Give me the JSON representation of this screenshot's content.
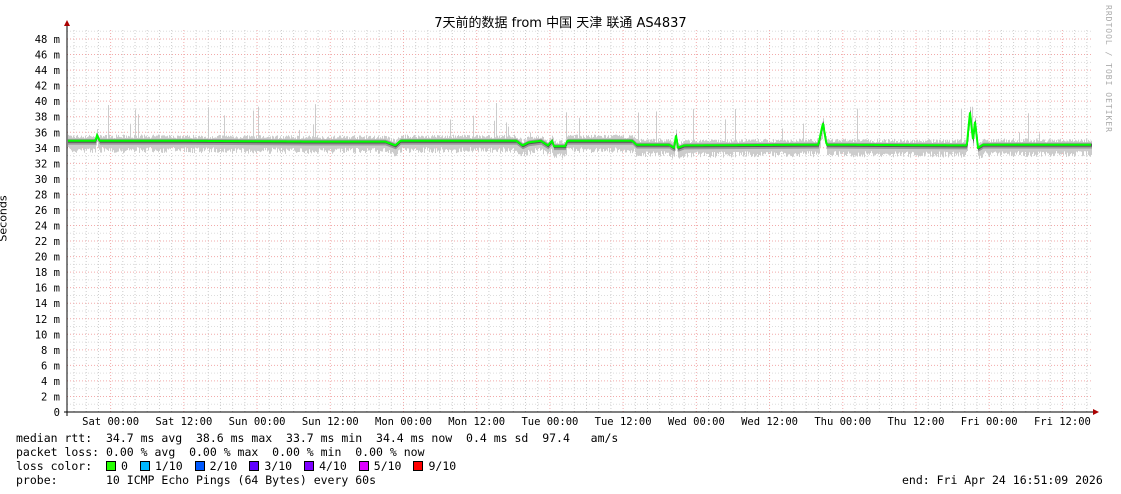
{
  "chart_data": {
    "type": "line",
    "title": "7天前的数据 from 中国 天津 联通 AS4837",
    "ylabel": "Seconds",
    "ylim": [
      0,
      49
    ],
    "y_ticks": [
      "0",
      "2 m",
      "4 m",
      "6 m",
      "8 m",
      "10 m",
      "12 m",
      "14 m",
      "16 m",
      "18 m",
      "20 m",
      "22 m",
      "24 m",
      "26 m",
      "28 m",
      "30 m",
      "32 m",
      "34 m",
      "36 m",
      "38 m",
      "40 m",
      "42 m",
      "44 m",
      "46 m",
      "48 m"
    ],
    "x_range": [
      "2026-04-17 16:51",
      "2026-04-24 16:51"
    ],
    "x_ticks": [
      "Sat 00:00",
      "Sat 12:00",
      "Sun 00:00",
      "Sun 12:00",
      "Mon 00:00",
      "Mon 12:00",
      "Tue 00:00",
      "Tue 12:00",
      "Wed 00:00",
      "Wed 12:00",
      "Thu 00:00",
      "Thu 12:00",
      "Fri 00:00",
      "Fri 12:00"
    ],
    "grid": true,
    "series": [
      {
        "name": "median rtt",
        "color": "#00ff00",
        "unit": "ms",
        "points": [
          [
            "2026-04-17 16:51",
            34.9
          ],
          [
            "2026-04-17 21:30",
            34.9
          ],
          [
            "2026-04-17 21:46",
            35.6
          ],
          [
            "2026-04-17 22:10",
            34.9
          ],
          [
            "2026-04-18 12:00",
            34.9
          ],
          [
            "2026-04-19 08:00",
            34.8
          ],
          [
            "2026-04-19 21:00",
            34.8
          ],
          [
            "2026-04-19 22:40",
            34.3
          ],
          [
            "2026-04-19 23:30",
            34.9
          ],
          [
            "2026-04-20 18:30",
            34.9
          ],
          [
            "2026-04-20 19:30",
            34.3
          ],
          [
            "2026-04-20 20:30",
            34.7
          ],
          [
            "2026-04-20 22:30",
            34.9
          ],
          [
            "2026-04-20 23:40",
            34.3
          ],
          [
            "2026-04-21 00:20",
            34.9
          ],
          [
            "2026-04-21 00:40",
            34.2
          ],
          [
            "2026-04-21 02:30",
            34.2
          ],
          [
            "2026-04-21 02:50",
            34.9
          ],
          [
            "2026-04-21 13:30",
            34.9
          ],
          [
            "2026-04-21 14:10",
            34.4
          ],
          [
            "2026-04-21 19:30",
            34.4
          ],
          [
            "2026-04-21 20:20",
            34.0
          ],
          [
            "2026-04-21 20:40",
            35.6
          ],
          [
            "2026-04-21 21:00",
            34.0
          ],
          [
            "2026-04-21 22:00",
            34.3
          ],
          [
            "2026-04-22 20:00",
            34.4
          ],
          [
            "2026-04-22 20:45",
            37.2
          ],
          [
            "2026-04-22 21:20",
            34.4
          ],
          [
            "2026-04-23 20:20",
            34.3
          ],
          [
            "2026-04-23 20:51",
            38.6
          ],
          [
            "2026-04-23 21:20",
            35.0
          ],
          [
            "2026-04-23 21:40",
            37.4
          ],
          [
            "2026-04-23 22:10",
            34.0
          ],
          [
            "2026-04-23 23:00",
            34.4
          ],
          [
            "2026-04-24 16:51",
            34.4
          ]
        ]
      }
    ]
  },
  "watermark": "RRDTOOL / TOBI OETIKER",
  "legend": {
    "median_rtt": "median rtt:  34.7 ms avg  38.6 ms max  33.7 ms min  34.4 ms now  0.4 ms sd  97.4   am/s",
    "packet_loss": "packet loss: 0.00 % avg  0.00 % max  0.00 % min  0.00 % now",
    "loss_color_label": "loss color:  ",
    "loss_colors": [
      {
        "label": "0",
        "color": "#26ff00"
      },
      {
        "label": "1/10",
        "color": "#00b8ff"
      },
      {
        "label": "2/10",
        "color": "#0059ff"
      },
      {
        "label": "3/10",
        "color": "#5e00ff"
      },
      {
        "label": "4/10",
        "color": "#7e00ff"
      },
      {
        "label": "5/10",
        "color": "#dd00ff"
      },
      {
        "label": "9/10",
        "color": "#ff0000"
      }
    ],
    "probe": "probe:       10 ICMP Echo Pings (64 Bytes) every 60s",
    "end": "end: Fri Apr 24 16:51:09 2026"
  }
}
